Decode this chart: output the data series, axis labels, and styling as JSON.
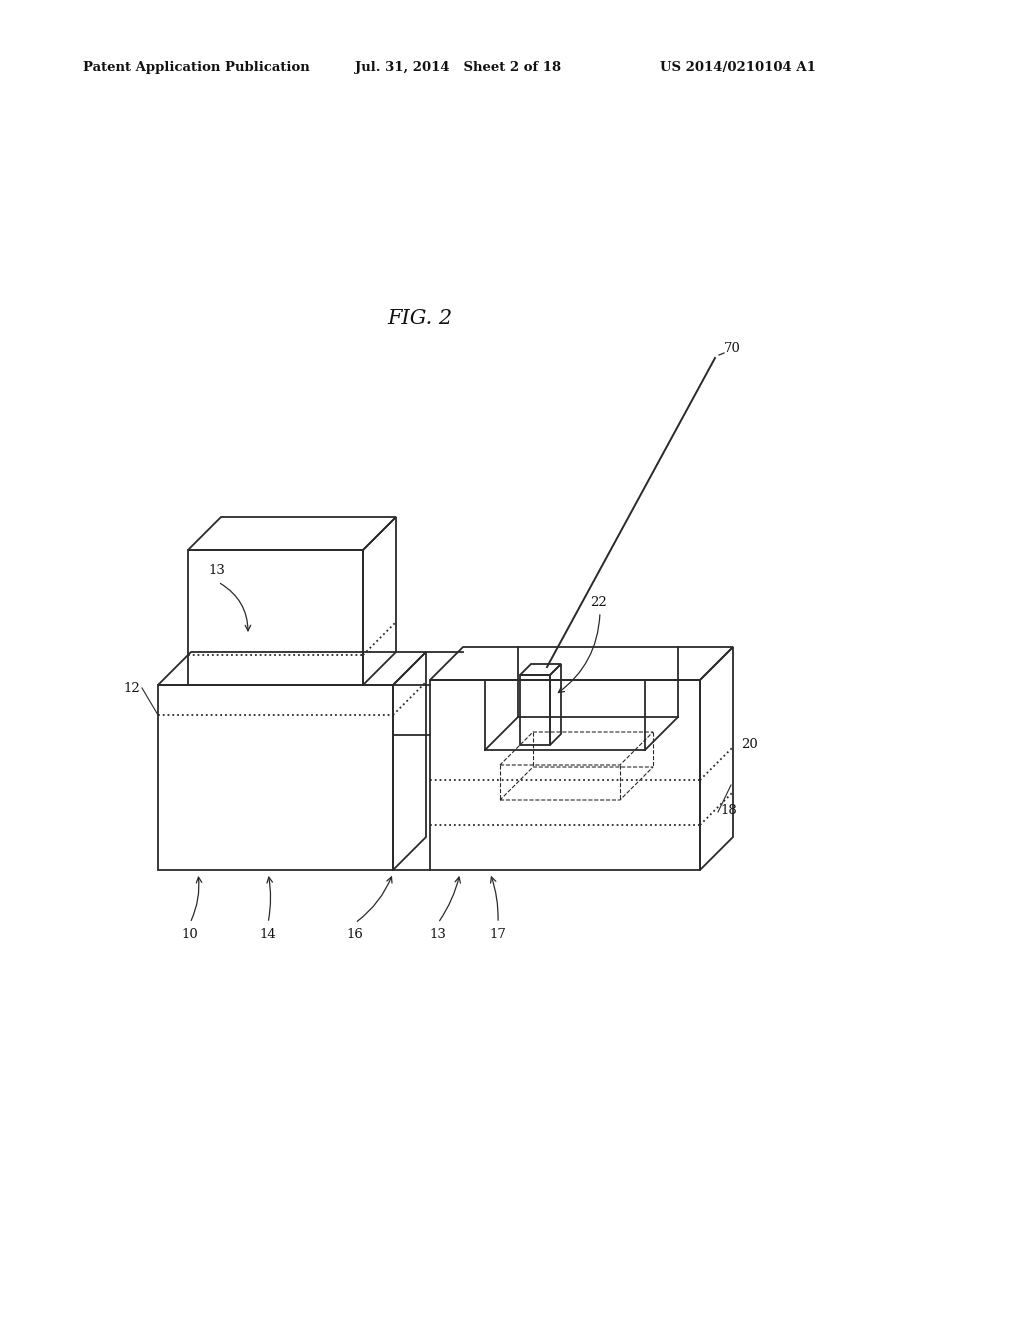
{
  "bg_color": "#ffffff",
  "line_color": "#2a2a2a",
  "header_text": "Patent Application Publication",
  "header_date": "Jul. 31, 2014   Sheet 2 of 18",
  "header_patent": "US 2014/0210104 A1",
  "fig_label": "FIG. 2"
}
